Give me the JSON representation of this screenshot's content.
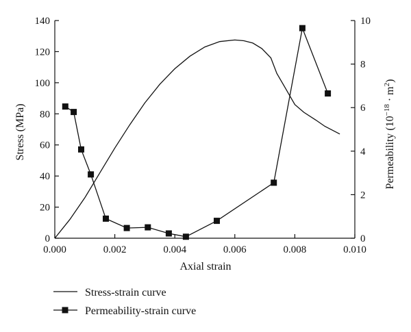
{
  "chart_data": {
    "type": "line",
    "xlabel": "Axial strain",
    "ylabel_left": "Stress (MPa)",
    "ylabel_right_main": "Permeability (10",
    "ylabel_right_sup": "−18",
    "ylabel_right_mid": " · m",
    "ylabel_right_sup2": "2",
    "ylabel_right_end": ")",
    "xlim": [
      0.0,
      0.01
    ],
    "ylim_left": [
      0,
      140
    ],
    "ylim_right": [
      0,
      10
    ],
    "x_ticks": [
      "0.000",
      "0.002",
      "0.004",
      "0.006",
      "0.008",
      "0.010"
    ],
    "x_tick_values": [
      0.0,
      0.002,
      0.004,
      0.006,
      0.008,
      0.01
    ],
    "y_left_ticks": [
      "0",
      "20",
      "40",
      "60",
      "80",
      "100",
      "120",
      "140"
    ],
    "y_left_tick_values": [
      0,
      20,
      40,
      60,
      80,
      100,
      120,
      140
    ],
    "y_right_ticks": [
      "0",
      "2",
      "4",
      "6",
      "8",
      "10"
    ],
    "y_right_tick_values": [
      0,
      2,
      4,
      6,
      8,
      10
    ],
    "grid": false,
    "legend_position": "bottom-left",
    "series": [
      {
        "name": "Stress-strain curve",
        "axis": "left",
        "marker": "none",
        "x": [
          0.0,
          0.0005,
          0.001,
          0.0015,
          0.002,
          0.0025,
          0.003,
          0.0035,
          0.004,
          0.0045,
          0.005,
          0.0055,
          0.006,
          0.0063,
          0.0066,
          0.0069,
          0.0072,
          0.0074,
          0.0077,
          0.008,
          0.0083,
          0.0087,
          0.009,
          0.0095
        ],
        "y": [
          0,
          12,
          26,
          42,
          58,
          73,
          87,
          99,
          109,
          117,
          123,
          126.5,
          127.5,
          127,
          125.5,
          122,
          116,
          106,
          96,
          86,
          81,
          76,
          72,
          67
        ]
      },
      {
        "name": "Permeability-strain curve",
        "axis": "right",
        "marker": "square",
        "x": [
          0.00035,
          0.00063,
          0.00088,
          0.0012,
          0.0017,
          0.0024,
          0.0031,
          0.0038,
          0.00437,
          0.0054,
          0.0073,
          0.00825,
          0.0091
        ],
        "y": [
          6.05,
          5.8,
          4.08,
          2.93,
          0.9,
          0.47,
          0.5,
          0.22,
          0.07,
          0.8,
          2.55,
          9.65,
          6.65
        ]
      }
    ]
  }
}
